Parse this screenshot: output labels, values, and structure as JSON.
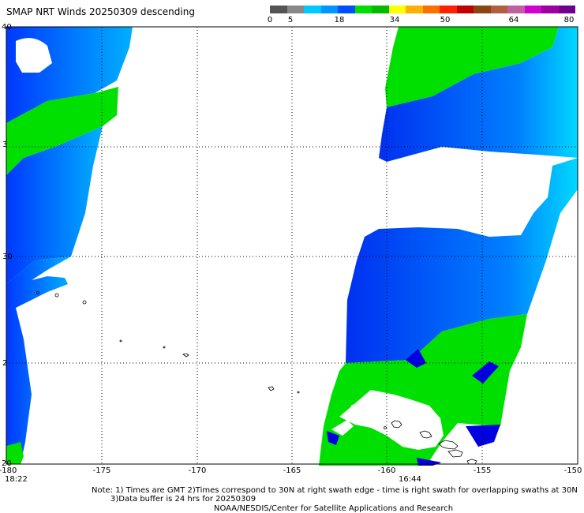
{
  "title": "SMAP NRT Winds  20250309 descending",
  "colorbar": {
    "ticks": [
      "0",
      "5",
      "18",
      "34",
      "50",
      "64",
      "80"
    ],
    "segments": [
      "#555555",
      "#888888",
      "#00c8ff",
      "#0096ff",
      "#0050ff",
      "#00dd00",
      "#00bb00",
      "#ffff00",
      "#ffb000",
      "#ff7000",
      "#ff2000",
      "#c00000",
      "#8b4513",
      "#b06040",
      "#c060a0",
      "#d000d0",
      "#a000a0",
      "#700090"
    ]
  },
  "map": {
    "lon_labels": [
      "-180",
      "-175",
      "-170",
      "-165",
      "-160",
      "-155",
      "-150"
    ],
    "lat_labels": [
      "40",
      "3",
      "30",
      "2",
      "20"
    ],
    "times": [
      "18:22",
      "16:44"
    ],
    "colors": {
      "low": "#00d8ff",
      "mid": "#0060ff",
      "deep": "#0000e0",
      "green": "#00e000"
    }
  },
  "footer": {
    "line1": "Note: 1) Times are GMT 2)Times correspond to 30N at right swath edge - time is right swath for overlapping swaths at 30N",
    "line2": "3)Data buffer is 24 hrs for 20250309",
    "line3": "NOAA/NESDIS/Center for Satellite Applications and Research"
  }
}
